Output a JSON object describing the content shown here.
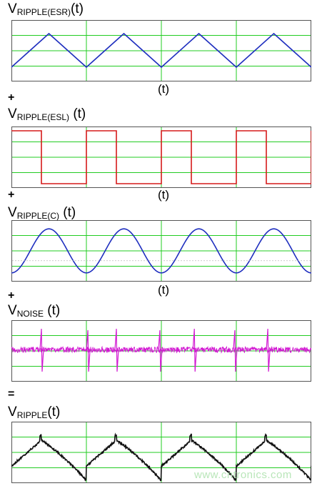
{
  "plots": [
    {
      "label_main": "V",
      "label_sub": "RIPPLE(ESR)",
      "label_suffix": "(t)",
      "axis_label": "(t)",
      "operator": "+",
      "chart_data": {
        "type": "line",
        "wave": "triangle",
        "color": "#1f2fbf",
        "periods": 4,
        "ylim": [
          -1,
          1
        ]
      }
    },
    {
      "label_main": "V",
      "label_sub": "RIPPLE(ESL)",
      "label_suffix": " (t)",
      "axis_label": "(t)",
      "operator": "+",
      "chart_data": {
        "type": "line",
        "wave": "square",
        "color": "#d61a1a",
        "periods": 4,
        "ylim": [
          -1,
          1
        ]
      }
    },
    {
      "label_main": "V",
      "label_sub": "RIPPLE(C)",
      "label_suffix": " (t)",
      "axis_label": "(t)",
      "operator": "+",
      "chart_data": {
        "type": "line",
        "wave": "sine",
        "color": "#1f2fbf",
        "periods": 4,
        "ylim": [
          -1,
          1
        ]
      }
    },
    {
      "label_main": "V",
      "label_sub": "NOISE",
      "label_suffix": " (t)",
      "axis_label": "",
      "operator": "=",
      "chart_data": {
        "type": "line",
        "wave": "noise",
        "color": "#d21ad2",
        "periods": 4,
        "ylim": [
          -1,
          1
        ]
      }
    },
    {
      "label_main": "V",
      "label_sub": "RIPPLE",
      "label_suffix": "(t)",
      "axis_label": "",
      "operator": "",
      "chart_data": {
        "type": "line",
        "wave": "sum",
        "color": "#111111",
        "periods": 4,
        "ylim": [
          -1,
          1
        ]
      }
    }
  ],
  "grid_color": "#22cc22",
  "watermark": "www.cntronics.com"
}
